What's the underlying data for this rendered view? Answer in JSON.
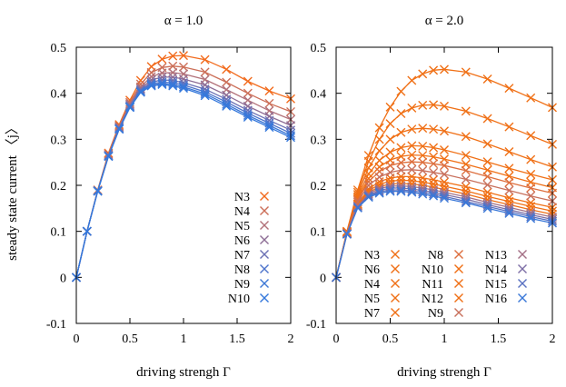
{
  "figure": {
    "xlabel": "driving strengh Γ",
    "ylabel": "steady state current 〈j〉"
  },
  "chart_data": [
    {
      "type": "line",
      "title": "α = 1.0",
      "xlabel": "driving strengh Γ",
      "ylabel": "steady state current 〈j〉",
      "xlim": [
        0,
        2
      ],
      "ylim": [
        -0.1,
        0.5
      ],
      "xticks": [
        "0",
        "0.5",
        "1",
        "1.5",
        "2"
      ],
      "yticks": [
        "-0.1",
        "0",
        "0.1",
        "0.2",
        "0.3",
        "0.4",
        "0.5"
      ],
      "legend_position": "bottom-right",
      "legend_layout": "column",
      "marker": "x",
      "x": [
        0,
        0.1,
        0.2,
        0.3,
        0.4,
        0.5,
        0.6,
        0.7,
        0.8,
        0.9,
        1.0,
        1.2,
        1.4,
        1.6,
        1.8,
        2.0
      ],
      "series": [
        {
          "name": "N3",
          "color": "#f26b1d",
          "values": [
            0,
            0.1,
            0.19,
            0.27,
            0.332,
            0.385,
            0.428,
            0.458,
            0.474,
            0.481,
            0.482,
            0.473,
            0.452,
            0.426,
            0.405,
            0.388
          ]
        },
        {
          "name": "N4",
          "color": "#cc6f58",
          "values": [
            0,
            0.1,
            0.189,
            0.268,
            0.329,
            0.38,
            0.42,
            0.445,
            0.456,
            0.459,
            0.457,
            0.446,
            0.424,
            0.4,
            0.378,
            0.36
          ]
        },
        {
          "name": "N5",
          "color": "#b27179",
          "values": [
            0,
            0.1,
            0.189,
            0.266,
            0.327,
            0.377,
            0.414,
            0.436,
            0.444,
            0.445,
            0.442,
            0.43,
            0.408,
            0.385,
            0.362,
            0.343
          ]
        },
        {
          "name": "N6",
          "color": "#8e6e96",
          "values": [
            0,
            0.1,
            0.188,
            0.265,
            0.325,
            0.374,
            0.41,
            0.429,
            0.435,
            0.435,
            0.431,
            0.418,
            0.396,
            0.372,
            0.35,
            0.33
          ]
        },
        {
          "name": "N7",
          "color": "#6b70b4",
          "values": [
            0,
            0.1,
            0.188,
            0.264,
            0.324,
            0.372,
            0.407,
            0.424,
            0.429,
            0.428,
            0.423,
            0.409,
            0.387,
            0.363,
            0.341,
            0.32
          ]
        },
        {
          "name": "N8",
          "color": "#4d74cc",
          "values": [
            0,
            0.1,
            0.188,
            0.264,
            0.323,
            0.371,
            0.405,
            0.421,
            0.424,
            0.423,
            0.418,
            0.403,
            0.381,
            0.357,
            0.335,
            0.313
          ]
        },
        {
          "name": "N9",
          "color": "#3d78d6",
          "values": [
            0,
            0.1,
            0.188,
            0.263,
            0.322,
            0.37,
            0.403,
            0.418,
            0.421,
            0.419,
            0.414,
            0.399,
            0.376,
            0.352,
            0.33,
            0.308
          ]
        },
        {
          "name": "N10",
          "color": "#3478dc",
          "values": [
            0,
            0.1,
            0.187,
            0.263,
            0.322,
            0.369,
            0.402,
            0.416,
            0.419,
            0.416,
            0.411,
            0.395,
            0.372,
            0.348,
            0.326,
            0.304
          ]
        }
      ]
    },
    {
      "type": "line",
      "title": "α = 2.0",
      "xlabel": "driving strengh Γ",
      "ylabel": "",
      "xlim": [
        0,
        2
      ],
      "ylim": [
        -0.1,
        0.5
      ],
      "xticks": [
        "0",
        "0.5",
        "1",
        "1.5",
        "2"
      ],
      "yticks": [
        "-0.1",
        "0",
        "0.1",
        "0.2",
        "0.3",
        "0.4",
        "0.5"
      ],
      "legend_position": "bottom",
      "legend_layout": "3 columns",
      "marker": "x",
      "x": [
        0,
        0.1,
        0.2,
        0.3,
        0.4,
        0.5,
        0.6,
        0.7,
        0.8,
        0.9,
        1.0,
        1.2,
        1.4,
        1.6,
        1.8,
        2.0
      ],
      "series": [
        {
          "name": "N3",
          "color": "#f07016",
          "values": [
            0,
            0.1,
            0.19,
            0.265,
            0.325,
            0.37,
            0.404,
            0.428,
            0.442,
            0.45,
            0.452,
            0.446,
            0.431,
            0.411,
            0.39,
            0.369
          ]
        },
        {
          "name": "N6",
          "color": "#f07016",
          "values": [
            0,
            0.098,
            0.175,
            0.225,
            0.254,
            0.272,
            0.282,
            0.286,
            0.285,
            0.282,
            0.277,
            0.265,
            0.251,
            0.237,
            0.224,
            0.212
          ]
        },
        {
          "name": "N4",
          "color": "#f07016",
          "values": [
            0,
            0.099,
            0.185,
            0.252,
            0.3,
            0.334,
            0.356,
            0.368,
            0.374,
            0.375,
            0.372,
            0.361,
            0.345,
            0.327,
            0.308,
            0.289
          ]
        },
        {
          "name": "N5",
          "color": "#f07016",
          "values": [
            0,
            0.099,
            0.18,
            0.238,
            0.275,
            0.3,
            0.315,
            0.322,
            0.324,
            0.322,
            0.318,
            0.306,
            0.29,
            0.273,
            0.256,
            0.24
          ]
        },
        {
          "name": "N7",
          "color": "#f07016",
          "values": [
            0,
            0.097,
            0.171,
            0.215,
            0.24,
            0.255,
            0.263,
            0.266,
            0.265,
            0.262,
            0.257,
            0.246,
            0.233,
            0.22,
            0.207,
            0.195
          ]
        },
        {
          "name": "N8",
          "color": "#dd6f3e",
          "values": [
            0,
            0.097,
            0.168,
            0.208,
            0.23,
            0.243,
            0.249,
            0.251,
            0.25,
            0.247,
            0.243,
            0.232,
            0.219,
            0.206,
            0.194,
            0.183
          ]
        },
        {
          "name": "N10",
          "color": "#f07016",
          "values": [
            0,
            0.096,
            0.16,
            0.192,
            0.208,
            0.216,
            0.219,
            0.219,
            0.216,
            0.212,
            0.207,
            0.197,
            0.185,
            0.173,
            0.162,
            0.152
          ]
        },
        {
          "name": "N11",
          "color": "#f07016",
          "values": [
            0,
            0.095,
            0.158,
            0.188,
            0.202,
            0.209,
            0.211,
            0.21,
            0.207,
            0.203,
            0.198,
            0.188,
            0.176,
            0.165,
            0.154,
            0.144
          ]
        },
        {
          "name": "N12",
          "color": "#f07016",
          "values": [
            0,
            0.095,
            0.156,
            0.184,
            0.197,
            0.203,
            0.204,
            0.203,
            0.2,
            0.196,
            0.191,
            0.181,
            0.169,
            0.158,
            0.147,
            0.137
          ]
        },
        {
          "name": "N9",
          "color": "#c8705c",
          "values": [
            0,
            0.096,
            0.164,
            0.2,
            0.218,
            0.228,
            0.233,
            0.234,
            0.232,
            0.228,
            0.224,
            0.213,
            0.201,
            0.189,
            0.177,
            0.166
          ]
        },
        {
          "name": "N13",
          "color": "#a47086",
          "values": [
            0,
            0.095,
            0.155,
            0.181,
            0.193,
            0.198,
            0.199,
            0.197,
            0.194,
            0.19,
            0.185,
            0.175,
            0.163,
            0.152,
            0.141,
            0.131
          ]
        },
        {
          "name": "N14",
          "color": "#7d6fa6",
          "values": [
            0,
            0.094,
            0.153,
            0.178,
            0.189,
            0.194,
            0.194,
            0.192,
            0.189,
            0.185,
            0.18,
            0.17,
            0.158,
            0.147,
            0.136,
            0.126
          ]
        },
        {
          "name": "N15",
          "color": "#5a72c2",
          "values": [
            0,
            0.094,
            0.152,
            0.176,
            0.186,
            0.19,
            0.19,
            0.188,
            0.185,
            0.181,
            0.176,
            0.165,
            0.154,
            0.143,
            0.132,
            0.122
          ]
        },
        {
          "name": "N16",
          "color": "#3a78d8",
          "values": [
            0,
            0.094,
            0.151,
            0.174,
            0.183,
            0.187,
            0.187,
            0.185,
            0.181,
            0.177,
            0.172,
            0.162,
            0.15,
            0.139,
            0.128,
            0.118
          ]
        }
      ]
    }
  ]
}
